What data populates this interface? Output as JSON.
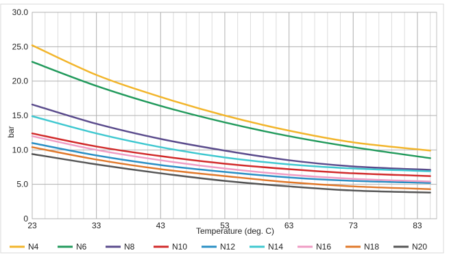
{
  "chart_data": {
    "type": "line",
    "xlabel": "Temperature (deg. C)",
    "ylabel": "bar",
    "xlim": [
      23,
      86
    ],
    "ylim": [
      0,
      30
    ],
    "x_ticks": [
      23,
      33,
      43,
      53,
      63,
      73,
      83
    ],
    "y_ticks": [
      0,
      5,
      10,
      15,
      20,
      25,
      30
    ],
    "y_tick_labels": [
      "0",
      "5.0",
      "10.0",
      "15.0",
      "20.0",
      "25.0",
      "30.0"
    ],
    "grid": true,
    "legend_position": "bottom",
    "x": [
      23,
      33,
      43,
      53,
      63,
      73,
      85
    ],
    "series": [
      {
        "name": "N4",
        "color": "#f2b52b",
        "values": [
          25.2,
          20.9,
          17.7,
          15.0,
          12.8,
          11.1,
          9.9
        ]
      },
      {
        "name": "N6",
        "color": "#229a5c",
        "values": [
          22.8,
          19.3,
          16.4,
          14.0,
          12.0,
          10.4,
          8.8
        ]
      },
      {
        "name": "N8",
        "color": "#5a4b8c",
        "values": [
          16.6,
          13.8,
          11.6,
          9.9,
          8.5,
          7.6,
          7.1
        ]
      },
      {
        "name": "N10",
        "color": "#d12a2a",
        "values": [
          12.4,
          10.5,
          9.1,
          8.0,
          7.2,
          6.6,
          6.2
        ]
      },
      {
        "name": "N12",
        "color": "#2a8fc4",
        "values": [
          11.0,
          9.2,
          7.8,
          6.8,
          6.0,
          5.5,
          5.2
        ]
      },
      {
        "name": "N14",
        "color": "#3fc8d0",
        "values": [
          14.9,
          12.4,
          10.4,
          8.9,
          7.9,
          7.3,
          6.9
        ]
      },
      {
        "name": "N16",
        "color": "#ef9cc4",
        "values": [
          12.0,
          10.0,
          8.5,
          7.3,
          6.4,
          5.8,
          5.4
        ]
      },
      {
        "name": "N18",
        "color": "#e0782a",
        "values": [
          10.4,
          8.6,
          7.2,
          6.2,
          5.3,
          4.7,
          4.3
        ]
      },
      {
        "name": "N20",
        "color": "#555555",
        "values": [
          9.4,
          7.9,
          6.6,
          5.5,
          4.7,
          4.1,
          3.8
        ]
      }
    ]
  }
}
